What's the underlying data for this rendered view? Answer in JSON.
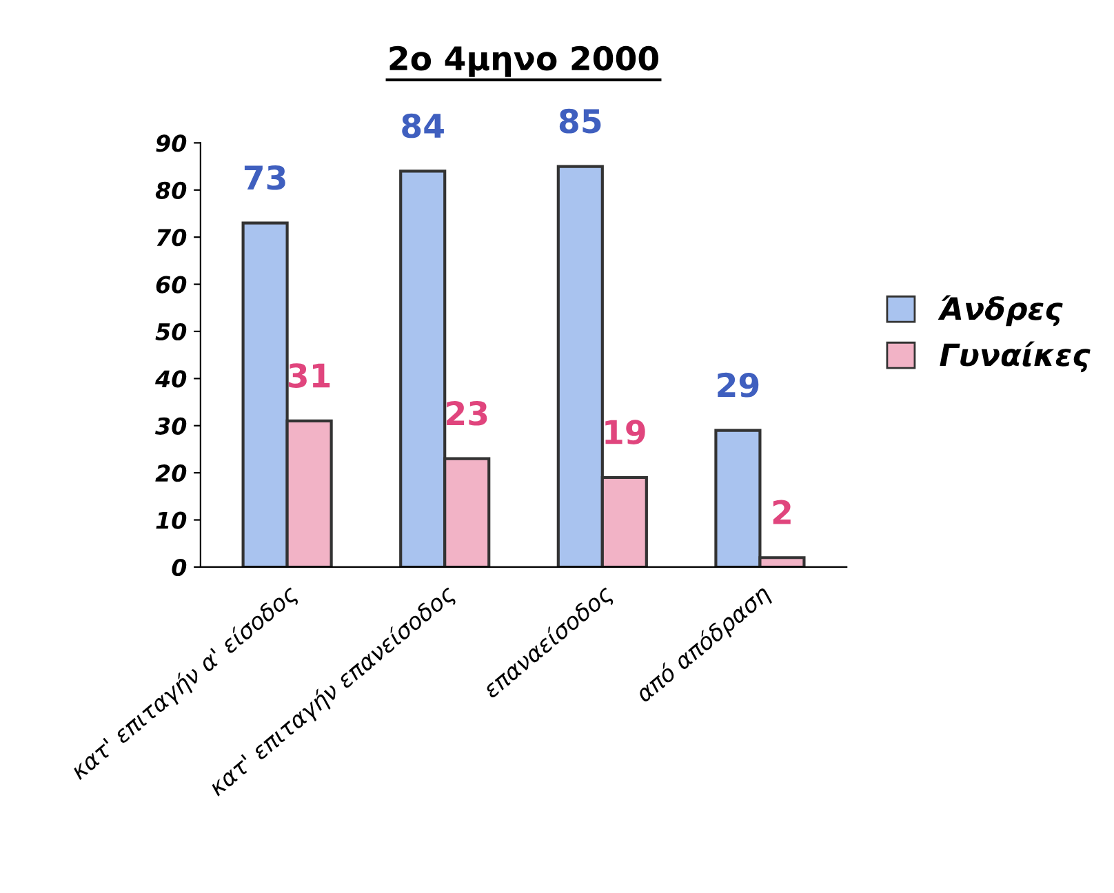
{
  "chart_data": {
    "type": "bar",
    "title": "2ο 4μηνο 2000",
    "categories": [
      "κατ' επιταγήν α' είσοδος",
      "κατ' επιταγήν επανείσοδος",
      "επαναείσοδος",
      "από απόδραση"
    ],
    "series": [
      {
        "name": "Άνδρες",
        "color": "#a9c3ef",
        "values": [
          73,
          84,
          85,
          29
        ]
      },
      {
        "name": "Γυναίκες",
        "color": "#f2b3c6",
        "values": [
          31,
          23,
          19,
          2
        ]
      }
    ],
    "ylim": [
      0,
      90
    ],
    "yticks": [
      0,
      10,
      20,
      30,
      40,
      50,
      60,
      70,
      80,
      90
    ],
    "grid": false,
    "legend": "right",
    "data_labels": true
  }
}
